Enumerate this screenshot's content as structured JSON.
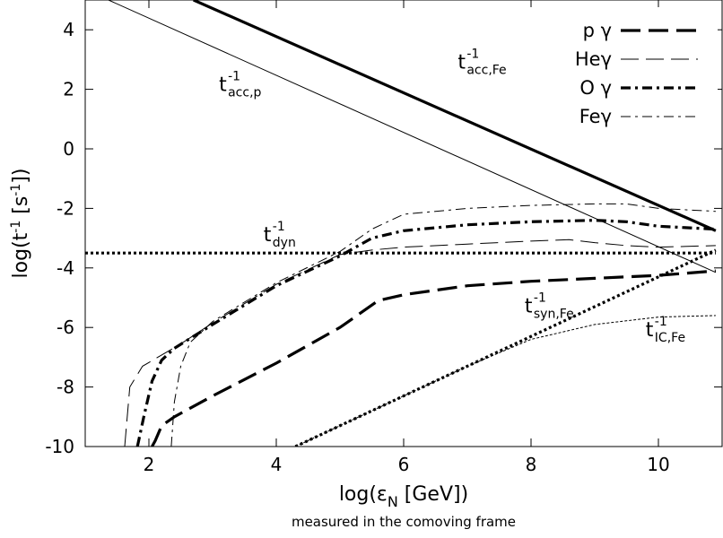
{
  "chart_data": {
    "type": "line",
    "title": "",
    "xlabel": "log(ε_N [GeV])",
    "xlabel_main": "log(ε",
    "xlabel_sub": "N",
    "xlabel_rest": " [GeV])",
    "caption": "measured in the comoving frame",
    "ylabel": "log(t⁻¹ [s⁻¹])",
    "xlim": [
      1,
      11
    ],
    "ylim": [
      -10,
      5
    ],
    "x_ticks": [
      2,
      4,
      6,
      8,
      10
    ],
    "y_ticks": [
      4,
      2,
      0,
      -2,
      -4,
      -6,
      -8,
      -10
    ],
    "grid": false,
    "legend_position": "top-right",
    "series": [
      {
        "name": "pγ",
        "legend_label": "p γ",
        "style": "long-dash-thick",
        "points": [
          [
            2.05,
            -10
          ],
          [
            2.1,
            -9.8
          ],
          [
            2.2,
            -9.3
          ],
          [
            2.4,
            -9.0
          ],
          [
            3.0,
            -8.3
          ],
          [
            4.0,
            -7.2
          ],
          [
            5.0,
            -6.0
          ],
          [
            5.6,
            -5.1
          ],
          [
            6.0,
            -4.9
          ],
          [
            7.0,
            -4.6
          ],
          [
            8.0,
            -4.45
          ],
          [
            9.0,
            -4.35
          ],
          [
            10.0,
            -4.25
          ],
          [
            10.9,
            -4.1
          ]
        ]
      },
      {
        "name": "Heγ",
        "legend_label": "Heγ",
        "style": "long-dash-thin",
        "points": [
          [
            1.62,
            -10
          ],
          [
            1.7,
            -8.0
          ],
          [
            1.9,
            -7.3
          ],
          [
            2.1,
            -7.05
          ],
          [
            2.5,
            -6.55
          ],
          [
            3.0,
            -5.85
          ],
          [
            4.0,
            -4.55
          ],
          [
            5.0,
            -3.55
          ],
          [
            5.5,
            -3.4
          ],
          [
            6.0,
            -3.3
          ],
          [
            7.0,
            -3.2
          ],
          [
            8.0,
            -3.1
          ],
          [
            8.6,
            -3.05
          ],
          [
            9.0,
            -3.15
          ],
          [
            9.5,
            -3.25
          ],
          [
            10.0,
            -3.3
          ],
          [
            10.9,
            -3.25
          ]
        ]
      },
      {
        "name": "Oγ",
        "legend_label": "O γ",
        "style": "dash-dot-thick",
        "points": [
          [
            1.82,
            -10
          ],
          [
            1.92,
            -9.0
          ],
          [
            2.05,
            -7.8
          ],
          [
            2.2,
            -7.1
          ],
          [
            2.4,
            -6.7
          ],
          [
            3.0,
            -5.9
          ],
          [
            4.0,
            -4.6
          ],
          [
            5.0,
            -3.6
          ],
          [
            5.5,
            -3.0
          ],
          [
            6.0,
            -2.75
          ],
          [
            7.0,
            -2.55
          ],
          [
            8.0,
            -2.45
          ],
          [
            9.0,
            -2.4
          ],
          [
            9.5,
            -2.45
          ],
          [
            10.0,
            -2.6
          ],
          [
            10.9,
            -2.7
          ]
        ]
      },
      {
        "name": "Feγ",
        "legend_label": "Feγ",
        "style": "dash-dot-thin",
        "points": [
          [
            2.35,
            -10
          ],
          [
            2.4,
            -8.5
          ],
          [
            2.5,
            -7.3
          ],
          [
            2.65,
            -6.5
          ],
          [
            3.0,
            -5.8
          ],
          [
            4.0,
            -4.5
          ],
          [
            5.0,
            -3.45
          ],
          [
            5.5,
            -2.7
          ],
          [
            6.0,
            -2.2
          ],
          [
            7.0,
            -2.0
          ],
          [
            8.0,
            -1.9
          ],
          [
            9.0,
            -1.85
          ],
          [
            9.5,
            -1.85
          ],
          [
            10.0,
            -2.0
          ],
          [
            10.9,
            -2.1
          ]
        ]
      },
      {
        "name": "t_acc,p",
        "style": "solid-thin",
        "points": [
          [
            1.0,
            5.35
          ],
          [
            10.9,
            -4.15
          ]
        ]
      },
      {
        "name": "t_acc,Fe",
        "style": "solid-thick",
        "points": [
          [
            2.7,
            5.0
          ],
          [
            10.9,
            -2.75
          ]
        ]
      },
      {
        "name": "t_dyn",
        "style": "dotted-thick",
        "points": [
          [
            1.0,
            -3.5
          ],
          [
            10.9,
            -3.5
          ]
        ]
      },
      {
        "name": "t_syn,Fe",
        "style": "dotted-thick",
        "points": [
          [
            4.3,
            -10
          ],
          [
            10.9,
            -3.4
          ]
        ]
      },
      {
        "name": "t_IC,Fe",
        "style": "dotted-thin",
        "points": [
          [
            4.3,
            -10
          ],
          [
            7.0,
            -7.3
          ],
          [
            8.0,
            -6.4
          ],
          [
            9.0,
            -5.9
          ],
          [
            10.0,
            -5.65
          ],
          [
            10.9,
            -5.6
          ]
        ]
      }
    ],
    "annotations": [
      {
        "main": "t",
        "sup": "-1",
        "sub": "acc,Fe",
        "x": 6.85,
        "y": 2.7
      },
      {
        "main": "t",
        "sup": "-1",
        "sub": "acc,p",
        "x": 3.1,
        "y": 1.95
      },
      {
        "main": "t",
        "sup": "-1",
        "sub": "dyn",
        "x": 3.8,
        "y": -3.1
      },
      {
        "main": "t",
        "sup": "-1",
        "sub": "syn,Fe",
        "x": 7.9,
        "y": -5.5
      },
      {
        "main": "t",
        "sup": "-1",
        "sub": "IC,Fe",
        "x": 9.8,
        "y": -6.3
      }
    ]
  }
}
